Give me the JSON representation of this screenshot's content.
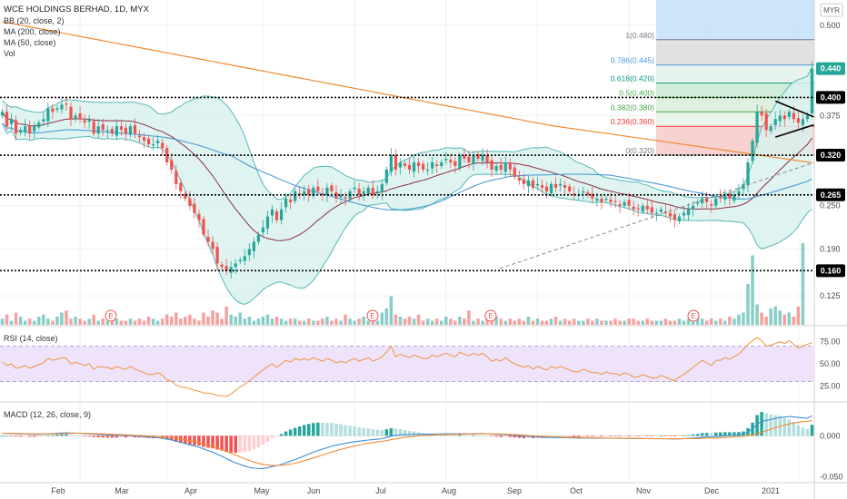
{
  "colors": {
    "up": "#26a69a",
    "down": "#ef5350",
    "ma200": "#f08c34",
    "ma50": "#4a9bd6",
    "bb_basis": "#8b2f43",
    "bb_band": "#56b9b6",
    "bb_fill": "#d9f1ef",
    "rsi": "#f0933a",
    "rsi_fill": "#efe3fb",
    "macd": "#3c8fd6",
    "signal": "#f08c34",
    "level": "#000000",
    "tag": "#000000",
    "last_tag": "#26a69a"
  },
  "header": {
    "symbol_line": "WCE HOLDINGS BERHAD, 1D, MYX",
    "studies": [
      "BB (20, close, 2)",
      "MA (200, close)",
      "MA (50, close)",
      "Vol"
    ],
    "currency": "MYR"
  },
  "chart_data": [
    {
      "type": "candlestick",
      "pane": "price",
      "x_axis": {
        "labels": [
          "Feb",
          "Mar",
          "Apr",
          "May",
          "Jun",
          "Jul",
          "Aug",
          "Sep",
          "Oct",
          "Nov",
          "Dec",
          "2021"
        ]
      },
      "y_axis": {
        "range": [
          0.085,
          0.535
        ],
        "ticks": [
          "0.500",
          "0.375",
          "0.250",
          "0.190",
          "0.125"
        ],
        "scale": "linear"
      },
      "grid": true,
      "close_series": [
        0.38,
        0.36,
        0.37,
        0.35,
        0.355,
        0.36,
        0.35,
        0.36,
        0.365,
        0.37,
        0.385,
        0.38,
        0.385,
        0.39,
        0.39,
        0.37,
        0.375,
        0.37,
        0.365,
        0.37,
        0.35,
        0.36,
        0.355,
        0.355,
        0.35,
        0.36,
        0.355,
        0.35,
        0.36,
        0.35,
        0.345,
        0.34,
        0.335,
        0.335,
        0.34,
        0.33,
        0.31,
        0.3,
        0.28,
        0.27,
        0.26,
        0.25,
        0.24,
        0.23,
        0.21,
        0.2,
        0.19,
        0.17,
        0.165,
        0.16,
        0.165,
        0.17,
        0.175,
        0.18,
        0.19,
        0.2,
        0.21,
        0.22,
        0.235,
        0.245,
        0.23,
        0.245,
        0.26,
        0.255,
        0.27,
        0.265,
        0.27,
        0.265,
        0.275,
        0.27,
        0.265,
        0.275,
        0.27,
        0.26,
        0.265,
        0.26,
        0.27,
        0.275,
        0.265,
        0.27,
        0.275,
        0.265,
        0.27,
        0.28,
        0.3,
        0.32,
        0.3,
        0.31,
        0.305,
        0.3,
        0.31,
        0.305,
        0.3,
        0.3,
        0.31,
        0.305,
        0.31,
        0.315,
        0.31,
        0.305,
        0.32,
        0.315,
        0.31,
        0.32,
        0.315,
        0.32,
        0.31,
        0.3,
        0.305,
        0.3,
        0.31,
        0.3,
        0.29,
        0.285,
        0.28,
        0.285,
        0.275,
        0.28,
        0.275,
        0.27,
        0.28,
        0.275,
        0.28,
        0.275,
        0.27,
        0.265,
        0.265,
        0.27,
        0.265,
        0.26,
        0.26,
        0.255,
        0.26,
        0.255,
        0.255,
        0.25,
        0.255,
        0.25,
        0.245,
        0.245,
        0.25,
        0.245,
        0.24,
        0.24,
        0.245,
        0.24,
        0.235,
        0.23,
        0.235,
        0.24,
        0.245,
        0.25,
        0.255,
        0.26,
        0.255,
        0.25,
        0.26,
        0.26,
        0.265,
        0.26,
        0.265,
        0.27,
        0.28,
        0.31,
        0.34,
        0.38,
        0.375,
        0.355,
        0.36,
        0.37,
        0.375,
        0.37,
        0.38,
        0.37,
        0.365,
        0.37,
        0.375,
        0.44
      ],
      "annotations": [
        "E",
        "E",
        "E",
        "E"
      ]
    },
    {
      "type": "horizontal-levels",
      "pane": "price",
      "levels": [
        0.4,
        0.32,
        0.265,
        0.16
      ],
      "labels": [
        "0.400",
        "0.320",
        "0.265",
        "0.160"
      ],
      "last_price": 0.44,
      "last_price_label": "0.440"
    },
    {
      "type": "fibonacci-retracement",
      "pane": "price",
      "levels": [
        {
          "ratio": 1,
          "price": 0.48,
          "label": "1(0.480)",
          "color": "#787b86"
        },
        {
          "ratio": 0.786,
          "price": 0.445,
          "label": "0.786(0.445)",
          "color": "#4a9bd6"
        },
        {
          "ratio": 0.618,
          "price": 0.42,
          "label": "0.618(0.420)",
          "color": "#089981"
        },
        {
          "ratio": 0.5,
          "price": 0.4,
          "label": "0.5(0.400)",
          "color": "#4caf50"
        },
        {
          "ratio": 0.382,
          "price": 0.38,
          "label": "0.382(0.380)",
          "color": "#43a047"
        },
        {
          "ratio": 0.236,
          "price": 0.36,
          "label": "0.236(0.360)",
          "color": "#e53935"
        },
        {
          "ratio": 0,
          "price": 0.32,
          "label": "0(0.320)",
          "color": "#787b86"
        }
      ]
    },
    {
      "type": "bar",
      "pane": "volume",
      "values": [
        3,
        5,
        2,
        6,
        4,
        2,
        3,
        2,
        4,
        5,
        3,
        2,
        4,
        6,
        7,
        3,
        4,
        3,
        2,
        3,
        5,
        2,
        3,
        2,
        4,
        3,
        2,
        2,
        3,
        2,
        3,
        2,
        4,
        3,
        2,
        3,
        5,
        4,
        6,
        3,
        4,
        5,
        3,
        2,
        6,
        4,
        7,
        6,
        3,
        9,
        5,
        4,
        6,
        3,
        4,
        2,
        3,
        4,
        5,
        3,
        4,
        3,
        2,
        3,
        3,
        2,
        2,
        3,
        2,
        2,
        3,
        4,
        2,
        3,
        2,
        5,
        3,
        2,
        3,
        4,
        2,
        3,
        2,
        6,
        8,
        14,
        5,
        4,
        3,
        4,
        3,
        5,
        2,
        3,
        2,
        3,
        2,
        4,
        3,
        2,
        4,
        3,
        7,
        2,
        3,
        2,
        5,
        2,
        4,
        3,
        2,
        3,
        2,
        3,
        2,
        4,
        2,
        3,
        2,
        2,
        3,
        4,
        2,
        3,
        2,
        3,
        2,
        2,
        3,
        2,
        3,
        2,
        2,
        2,
        3,
        2,
        2,
        3,
        3,
        2,
        2,
        3,
        2,
        2,
        2,
        3,
        2,
        2,
        3,
        2,
        3,
        2,
        4,
        3,
        2,
        3,
        2,
        3,
        2,
        4,
        3,
        5,
        6,
        20,
        34,
        10,
        6,
        4,
        8,
        9,
        7,
        5,
        6,
        4,
        9,
        40
      ]
    },
    {
      "type": "line",
      "pane": "rsi",
      "title": "RSI (14, close)",
      "y_axis": {
        "range": [
          10,
          90
        ],
        "ticks": [
          "75.00",
          "50.00",
          "25.00"
        ]
      },
      "bands": [
        70,
        30
      ],
      "values": [
        52,
        48,
        50,
        45,
        46,
        48,
        45,
        47,
        49,
        51,
        56,
        54,
        55,
        57,
        56,
        50,
        52,
        50,
        48,
        50,
        44,
        47,
        46,
        46,
        44,
        47,
        45,
        44,
        47,
        44,
        42,
        40,
        38,
        38,
        40,
        37,
        32,
        30,
        26,
        24,
        23,
        22,
        20,
        19,
        17,
        17,
        16,
        14,
        14,
        13,
        16,
        20,
        24,
        27,
        31,
        35,
        39,
        43,
        47,
        50,
        46,
        50,
        54,
        52,
        56,
        54,
        56,
        54,
        57,
        55,
        53,
        56,
        54,
        51,
        53,
        51,
        54,
        56,
        53,
        55,
        57,
        53,
        55,
        58,
        63,
        70,
        58,
        61,
        59,
        57,
        60,
        58,
        56,
        56,
        60,
        58,
        60,
        62,
        60,
        58,
        63,
        61,
        59,
        62,
        60,
        62,
        58,
        53,
        55,
        53,
        57,
        53,
        50,
        48,
        46,
        48,
        44,
        47,
        45,
        43,
        47,
        45,
        47,
        45,
        43,
        41,
        41,
        44,
        42,
        40,
        40,
        38,
        41,
        39,
        39,
        37,
        40,
        38,
        35,
        35,
        38,
        36,
        34,
        34,
        37,
        35,
        33,
        31,
        35,
        38,
        42,
        46,
        50,
        54,
        51,
        48,
        54,
        54,
        57,
        55,
        58,
        61,
        66,
        72,
        76,
        80,
        76,
        70,
        71,
        73,
        75,
        73,
        76,
        72,
        68,
        70,
        72,
        74
      ]
    },
    {
      "type": "bar+line",
      "pane": "macd",
      "title": "MACD (12, 26, close, 9)",
      "y_axis": {
        "range": [
          -0.055,
          0.038
        ],
        "ticks": [
          "0.000",
          "-0.050"
        ]
      },
      "macd": [
        0.003,
        0.003,
        0.0028,
        0.0025,
        0.0023,
        0.0022,
        0.002,
        0.0018,
        0.0018,
        0.0019,
        0.0024,
        0.0027,
        0.003,
        0.0034,
        0.0036,
        0.0034,
        0.0032,
        0.003,
        0.0027,
        0.0025,
        0.002,
        0.0017,
        0.0014,
        0.0011,
        0.0008,
        0.0006,
        0.0004,
        0.0002,
        0,
        -0.0003,
        -0.0006,
        -0.001,
        -0.0015,
        -0.002,
        -0.0024,
        -0.003,
        -0.004,
        -0.005,
        -0.0065,
        -0.008,
        -0.0095,
        -0.011,
        -0.0125,
        -0.014,
        -0.016,
        -0.018,
        -0.02,
        -0.0225,
        -0.025,
        -0.028,
        -0.0305,
        -0.033,
        -0.035,
        -0.037,
        -0.0385,
        -0.0395,
        -0.04,
        -0.0398,
        -0.039,
        -0.0375,
        -0.0365,
        -0.035,
        -0.033,
        -0.031,
        -0.029,
        -0.0268,
        -0.0245,
        -0.0222,
        -0.02,
        -0.018,
        -0.0163,
        -0.0145,
        -0.0128,
        -0.0115,
        -0.0103,
        -0.0093,
        -0.0082,
        -0.0072,
        -0.0066,
        -0.006,
        -0.0052,
        -0.0047,
        -0.0042,
        -0.0035,
        -0.0022,
        -0.0005,
        0.0003,
        0.001,
        0.0013,
        0.0015,
        0.0018,
        0.0019,
        0.0019,
        0.0019,
        0.0021,
        0.0021,
        0.0022,
        0.0024,
        0.0024,
        0.0023,
        0.0026,
        0.0026,
        0.0025,
        0.0027,
        0.0027,
        0.0028,
        0.0026,
        0.0021,
        0.0018,
        0.0014,
        0.0013,
        0.001,
        0.0005,
        0,
        -0.0005,
        -0.0008,
        -0.0013,
        -0.0015,
        -0.0018,
        -0.0021,
        -0.0021,
        -0.0022,
        -0.0022,
        -0.0023,
        -0.0024,
        -0.0026,
        -0.0027,
        -0.0026,
        -0.0027,
        -0.0028,
        -0.0029,
        -0.003,
        -0.003,
        -0.0031,
        -0.0031,
        -0.0032,
        -0.0032,
        -0.0033,
        -0.0034,
        -0.0035,
        -0.0034,
        -0.0035,
        -0.0036,
        -0.0036,
        -0.0035,
        -0.0036,
        -0.0037,
        -0.0038,
        -0.0037,
        -0.0035,
        -0.0032,
        -0.0028,
        -0.0023,
        -0.0017,
        -0.0014,
        -0.0013,
        -0.0008,
        -0.0004,
        0,
        0.0003,
        0.0007,
        0.0012,
        0.002,
        0.0045,
        0.0085,
        0.014,
        0.0175,
        0.0188,
        0.0198,
        0.0212,
        0.0225,
        0.0228,
        0.0235,
        0.0232,
        0.0224,
        0.0218,
        0.0214,
        0.0245
      ],
      "signal_line": [
        0.003,
        0.003,
        0.003,
        0.0029,
        0.0028,
        0.0026,
        0.0025,
        0.0024,
        0.0023,
        0.0022,
        0.0022,
        0.0023,
        0.0024,
        0.0026,
        0.0028,
        0.0029,
        0.003,
        0.003,
        0.003,
        0.0029,
        0.0027,
        0.0025,
        0.0023,
        0.0021,
        0.0018,
        0.0016,
        0.0013,
        0.0011,
        0.0008,
        0.0006,
        0.0003,
        0,
        -0.0003,
        -0.0006,
        -0.001,
        -0.0014,
        -0.0019,
        -0.0025,
        -0.0032,
        -0.004,
        -0.005,
        -0.006,
        -0.0072,
        -0.0085,
        -0.0098,
        -0.0114,
        -0.013,
        -0.0148,
        -0.0168,
        -0.019,
        -0.0212,
        -0.0235,
        -0.0258,
        -0.028,
        -0.0301,
        -0.032,
        -0.0336,
        -0.0348,
        -0.0357,
        -0.0361,
        -0.0362,
        -0.036,
        -0.0354,
        -0.0345,
        -0.0334,
        -0.032,
        -0.0305,
        -0.0288,
        -0.0271,
        -0.0253,
        -0.0235,
        -0.0217,
        -0.0199,
        -0.0182,
        -0.0167,
        -0.0152,
        -0.0138,
        -0.0125,
        -0.0113,
        -0.0102,
        -0.0092,
        -0.0083,
        -0.0075,
        -0.0067,
        -0.0058,
        -0.0047,
        -0.0037,
        -0.0027,
        -0.0019,
        -0.0012,
        -0.0006,
        -0.0001,
        0.0003,
        0.0006,
        0.0009,
        0.0011,
        0.0013,
        0.0015,
        0.0017,
        0.0018,
        0.002,
        0.0021,
        0.0022,
        0.0023,
        0.0024,
        0.0025,
        0.0025,
        0.0024,
        0.0023,
        0.0021,
        0.0019,
        0.0017,
        0.0014,
        0.0011,
        0.0008,
        0.0004,
        0,
        -0.0003,
        -0.0006,
        -0.0009,
        -0.0011,
        -0.0013,
        -0.0015,
        -0.0017,
        -0.0018,
        -0.002,
        -0.0021,
        -0.0022,
        -0.0023,
        -0.0024,
        -0.0025,
        -0.0026,
        -0.0027,
        -0.0028,
        -0.0028,
        -0.0029,
        -0.003,
        -0.0031,
        -0.0032,
        -0.0032,
        -0.0033,
        -0.0034,
        -0.0034,
        -0.0035,
        -0.0035,
        -0.0035,
        -0.0036,
        -0.0036,
        -0.0036,
        -0.0036,
        -0.0035,
        -0.0035,
        -0.0033,
        -0.0032,
        -0.003,
        -0.0028,
        -0.0026,
        -0.0023,
        -0.002,
        -0.0017,
        -0.0013,
        -0.0009,
        -0.0004,
        0.0003,
        0.0012,
        0.0025,
        0.0043,
        0.0062,
        0.008,
        0.0098,
        0.0114,
        0.0129,
        0.0144,
        0.0157,
        0.0166,
        0.0173,
        0.0177,
        0.0184
      ]
    }
  ]
}
